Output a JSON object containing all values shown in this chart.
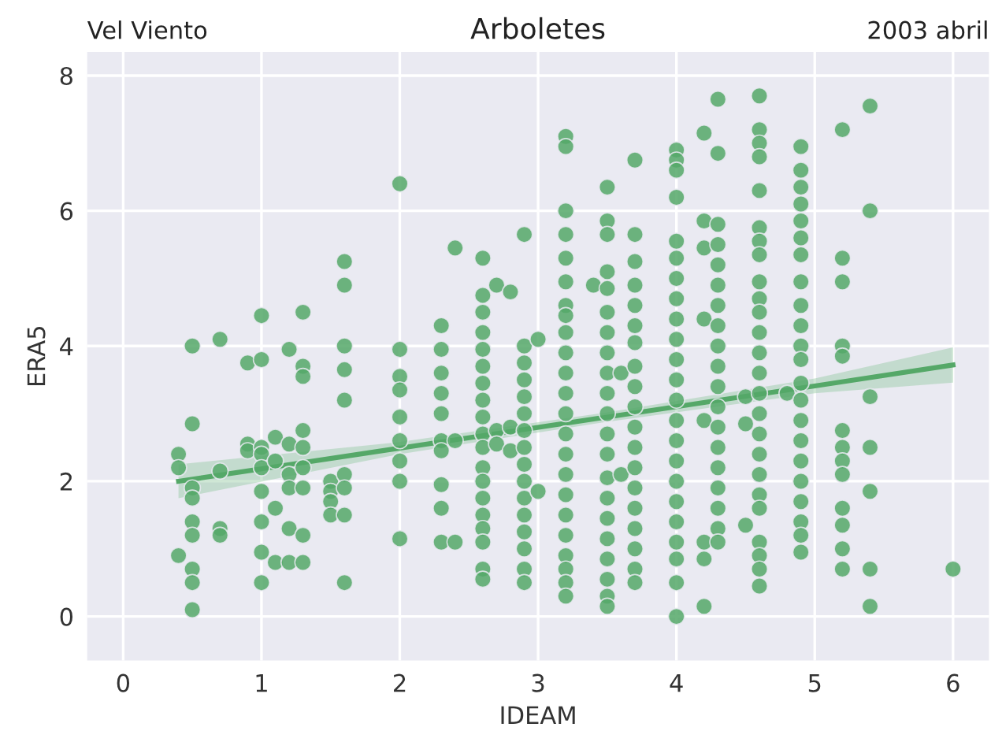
{
  "chart_data": {
    "type": "scatter",
    "title": "Arboletes",
    "xlabel": "IDEAM",
    "ylabel": "ERA5",
    "annotations": [
      "Vel Viento",
      "2003 abril"
    ],
    "xlim": [
      -0.26,
      6.26
    ],
    "ylim": [
      -0.65,
      8.35
    ],
    "xticks": [
      0,
      1,
      2,
      3,
      4,
      5,
      6
    ],
    "yticks": [
      0,
      2,
      4,
      6,
      8
    ],
    "grid": true,
    "series": [
      {
        "type": "scatter",
        "color": "#55a868",
        "marker": "circle",
        "x": [
          0.4,
          0.4,
          0.4,
          0.5,
          0.5,
          0.5,
          0.5,
          0.5,
          0.5,
          0.5,
          0.5,
          0.5,
          0.7,
          0.7,
          0.7,
          0.7,
          0.9,
          0.9,
          0.9,
          1.0,
          1.0,
          1.0,
          1.0,
          1.0,
          1.0,
          1.0,
          1.0,
          1.0,
          1.1,
          1.1,
          1.1,
          1.1,
          1.2,
          1.2,
          1.2,
          1.2,
          1.2,
          1.2,
          1.3,
          1.3,
          1.3,
          1.3,
          1.3,
          1.3,
          1.3,
          1.3,
          1.3,
          1.5,
          1.5,
          1.5,
          1.5,
          1.6,
          1.6,
          1.6,
          1.6,
          1.6,
          1.6,
          1.6,
          1.6,
          1.6,
          2.0,
          2.0,
          2.0,
          2.0,
          2.0,
          2.0,
          2.0,
          2.0,
          2.0,
          2.3,
          2.3,
          2.3,
          2.3,
          2.3,
          2.3,
          2.3,
          2.3,
          2.3,
          2.3,
          2.4,
          2.4,
          2.4,
          2.6,
          2.6,
          2.6,
          2.6,
          2.6,
          2.6,
          2.6,
          2.6,
          2.6,
          2.6,
          2.6,
          2.6,
          2.6,
          2.6,
          2.6,
          2.6,
          2.6,
          2.6,
          2.6,
          2.7,
          2.7,
          2.7,
          2.8,
          2.8,
          2.8,
          2.9,
          2.9,
          2.9,
          2.9,
          2.9,
          2.9,
          2.9,
          2.9,
          2.9,
          2.9,
          2.9,
          2.9,
          2.9,
          2.9,
          2.9,
          2.9,
          3.0,
          3.0,
          3.2,
          3.2,
          3.2,
          3.2,
          3.2,
          3.2,
          3.2,
          3.2,
          3.2,
          3.2,
          3.2,
          3.2,
          3.2,
          3.2,
          3.2,
          3.2,
          3.2,
          3.2,
          3.2,
          3.2,
          3.2,
          3.2,
          3.2,
          3.4,
          3.5,
          3.5,
          3.5,
          3.5,
          3.5,
          3.5,
          3.5,
          3.5,
          3.5,
          3.5,
          3.5,
          3.5,
          3.5,
          3.5,
          3.5,
          3.5,
          3.5,
          3.5,
          3.5,
          3.5,
          3.5,
          3.6,
          3.6,
          3.7,
          3.7,
          3.7,
          3.7,
          3.7,
          3.7,
          3.7,
          3.7,
          3.7,
          3.7,
          3.7,
          3.7,
          3.7,
          3.7,
          3.7,
          3.7,
          3.7,
          3.7,
          3.7,
          4.0,
          4.0,
          4.0,
          4.0,
          4.0,
          4.0,
          4.0,
          4.0,
          4.0,
          4.0,
          4.0,
          4.0,
          4.0,
          4.0,
          4.0,
          4.0,
          4.0,
          4.0,
          4.0,
          4.0,
          4.0,
          4.0,
          4.0,
          4.2,
          4.2,
          4.2,
          4.2,
          4.2,
          4.2,
          4.2,
          4.2,
          4.3,
          4.3,
          4.3,
          4.3,
          4.3,
          4.3,
          4.3,
          4.3,
          4.3,
          4.3,
          4.3,
          4.3,
          4.3,
          4.3,
          4.3,
          4.3,
          4.3,
          4.3,
          4.3,
          4.5,
          4.5,
          4.5,
          4.6,
          4.6,
          4.6,
          4.6,
          4.6,
          4.6,
          4.6,
          4.6,
          4.6,
          4.6,
          4.6,
          4.6,
          4.6,
          4.6,
          4.6,
          4.6,
          4.6,
          4.6,
          4.6,
          4.6,
          4.6,
          4.6,
          4.6,
          4.6,
          4.6,
          4.8,
          4.9,
          4.9,
          4.9,
          4.9,
          4.9,
          4.9,
          4.9,
          4.9,
          4.9,
          4.9,
          4.9,
          4.9,
          4.9,
          4.9,
          4.9,
          4.9,
          4.9,
          4.9,
          4.9,
          4.9,
          4.9,
          4.9,
          5.2,
          5.2,
          5.2,
          5.2,
          5.2,
          5.2,
          5.2,
          5.2,
          5.2,
          5.2,
          5.2,
          5.2,
          5.2,
          5.4,
          5.4,
          5.4,
          5.4,
          5.4,
          5.4,
          5.4,
          6.0
        ],
        "values": [
          2.4,
          2.2,
          0.9,
          4.0,
          2.85,
          1.9,
          1.75,
          1.4,
          1.2,
          0.7,
          0.5,
          0.1,
          4.1,
          2.15,
          1.3,
          1.2,
          3.75,
          2.55,
          2.45,
          4.45,
          3.8,
          2.5,
          2.4,
          2.2,
          1.85,
          1.4,
          0.95,
          0.5,
          2.65,
          2.3,
          1.6,
          0.8,
          3.95,
          2.55,
          2.1,
          1.9,
          1.3,
          0.8,
          4.5,
          3.7,
          3.55,
          2.75,
          2.5,
          2.2,
          1.9,
          1.2,
          0.8,
          2.0,
          1.85,
          1.7,
          1.5,
          5.25,
          4.9,
          4.0,
          3.65,
          3.2,
          2.1,
          1.9,
          1.5,
          0.5,
          6.4,
          3.95,
          3.55,
          3.35,
          2.95,
          2.6,
          2.3,
          2.0,
          1.15,
          4.3,
          3.95,
          3.6,
          3.3,
          3.0,
          2.6,
          2.45,
          1.95,
          1.6,
          1.1,
          5.45,
          2.6,
          1.1,
          5.3,
          4.75,
          4.5,
          4.2,
          3.95,
          3.7,
          3.45,
          3.2,
          2.95,
          2.7,
          2.5,
          2.2,
          2.0,
          1.75,
          1.5,
          1.3,
          1.1,
          0.7,
          0.55,
          4.9,
          2.75,
          2.55,
          4.8,
          2.8,
          2.45,
          5.65,
          4.0,
          3.75,
          3.5,
          3.25,
          3.0,
          2.75,
          2.5,
          2.25,
          2.0,
          1.75,
          1.5,
          1.25,
          1.0,
          0.7,
          0.5,
          4.1,
          1.85,
          7.1,
          6.95,
          6.0,
          5.65,
          5.3,
          4.95,
          4.6,
          4.45,
          4.2,
          3.9,
          3.6,
          3.3,
          3.0,
          2.7,
          2.4,
          2.1,
          1.8,
          1.5,
          1.2,
          0.9,
          0.7,
          0.5,
          0.3,
          4.9,
          6.35,
          5.85,
          5.65,
          5.1,
          4.85,
          4.5,
          4.2,
          3.9,
          3.6,
          3.3,
          3.0,
          2.7,
          2.4,
          2.05,
          1.75,
          1.45,
          1.15,
          0.85,
          0.55,
          0.3,
          0.15,
          3.6,
          2.1,
          6.75,
          5.65,
          5.25,
          4.9,
          4.6,
          4.3,
          4.05,
          3.7,
          3.4,
          3.1,
          2.8,
          2.5,
          2.2,
          1.9,
          1.6,
          1.3,
          1.0,
          0.7,
          0.5,
          6.9,
          6.75,
          6.6,
          6.2,
          5.55,
          5.3,
          5.0,
          4.7,
          4.4,
          4.1,
          3.8,
          3.5,
          3.2,
          2.9,
          2.6,
          2.3,
          2.0,
          1.7,
          1.4,
          1.1,
          0.85,
          0.5,
          0.0,
          7.15,
          5.85,
          5.45,
          4.4,
          2.9,
          1.1,
          0.85,
          0.15,
          7.65,
          6.85,
          5.8,
          5.5,
          5.2,
          4.9,
          4.6,
          4.3,
          4.0,
          3.7,
          3.4,
          3.1,
          2.8,
          2.5,
          2.2,
          1.9,
          1.6,
          1.3,
          1.1,
          3.25,
          2.85,
          1.35,
          7.7,
          7.2,
          7.0,
          6.8,
          6.3,
          5.75,
          5.55,
          5.35,
          4.95,
          4.7,
          4.5,
          4.2,
          3.9,
          3.6,
          3.3,
          3.0,
          2.7,
          2.4,
          2.1,
          1.8,
          1.6,
          1.1,
          0.9,
          0.7,
          0.45,
          3.3,
          6.95,
          6.6,
          6.35,
          6.1,
          5.85,
          5.6,
          5.35,
          4.95,
          4.6,
          4.3,
          4.0,
          3.8,
          3.45,
          3.2,
          2.9,
          2.6,
          2.3,
          2.0,
          1.7,
          1.4,
          1.2,
          0.95,
          7.2,
          5.3,
          4.95,
          4.0,
          3.85,
          2.75,
          2.5,
          2.3,
          2.1,
          1.6,
          1.35,
          1.0,
          0.7,
          7.55,
          6.0,
          3.25,
          2.5,
          1.85,
          0.7,
          0.15,
          0.7
        ]
      },
      {
        "type": "line",
        "marker": "none",
        "color": "#55a868",
        "x": [
          0.4,
          2.0,
          3.5,
          5.0,
          6.0
        ],
        "values": [
          2.0,
          2.49,
          2.95,
          3.41,
          3.72
        ],
        "lower": [
          1.75,
          2.4,
          2.88,
          3.3,
          3.46
        ],
        "upper": [
          2.25,
          2.58,
          3.02,
          3.52,
          3.98
        ]
      }
    ]
  }
}
